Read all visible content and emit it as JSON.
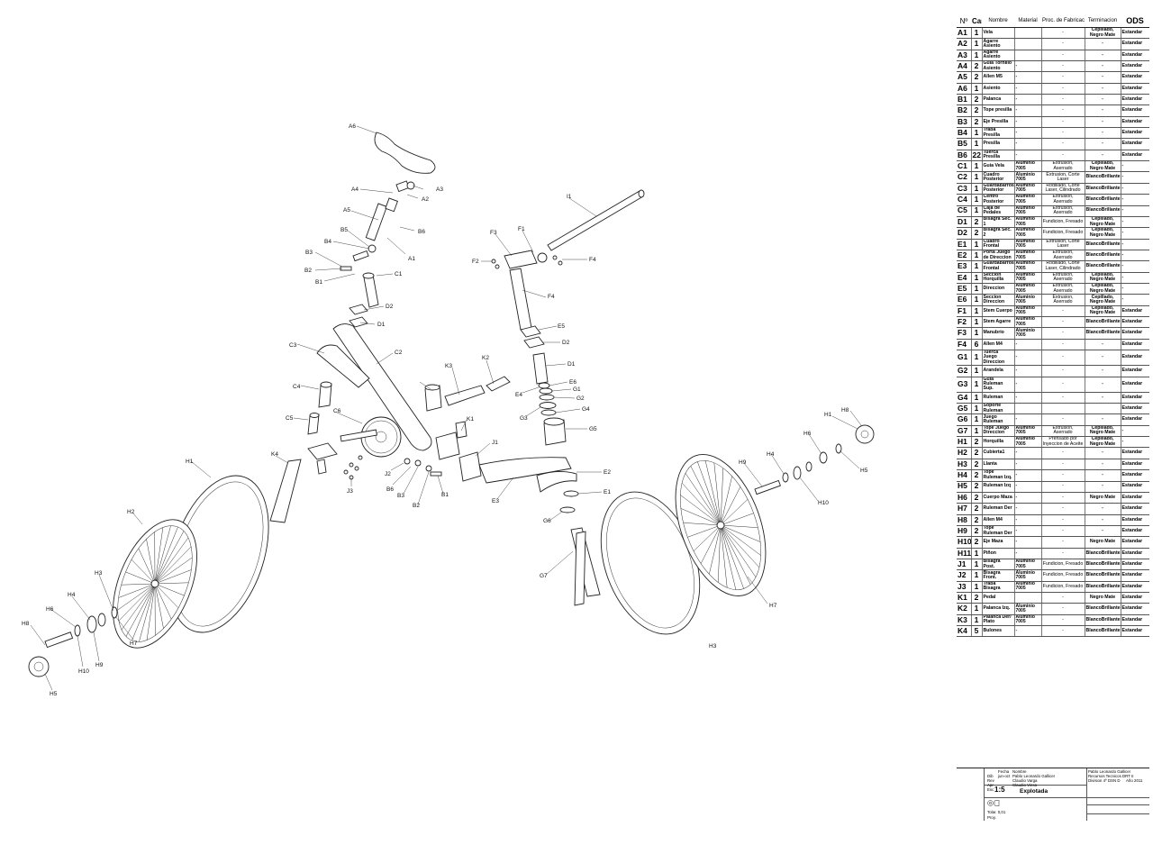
{
  "drawing": {
    "labels": [
      {
        "id": "lA6",
        "text": "A6"
      },
      {
        "id": "lA3",
        "text": "A3"
      },
      {
        "id": "lA4",
        "text": "A4"
      },
      {
        "id": "lA2",
        "text": "A2"
      },
      {
        "id": "lA5",
        "text": "A5"
      },
      {
        "id": "lB6",
        "text": "B6"
      },
      {
        "id": "lB5",
        "text": "B5"
      },
      {
        "id": "lA1",
        "text": "A1"
      },
      {
        "id": "lB4",
        "text": "B4"
      },
      {
        "id": "lB3",
        "text": "B3"
      },
      {
        "id": "lB2",
        "text": "B2"
      },
      {
        "id": "lB1",
        "text": "B1"
      },
      {
        "id": "lC1",
        "text": "C1"
      },
      {
        "id": "lD2a",
        "text": "D2"
      },
      {
        "id": "lD1a",
        "text": "D1"
      },
      {
        "id": "lC3",
        "text": "C3"
      },
      {
        "id": "lC2",
        "text": "C2"
      },
      {
        "id": "lC4",
        "text": "C4"
      },
      {
        "id": "lC5",
        "text": "C5"
      },
      {
        "id": "lC6",
        "text": "C6"
      },
      {
        "id": "lK3",
        "text": "K3"
      },
      {
        "id": "lK2",
        "text": "K2"
      },
      {
        "id": "lK1",
        "text": "K1"
      },
      {
        "id": "lJ1",
        "text": "J1"
      },
      {
        "id": "lJ2",
        "text": "J2"
      },
      {
        "id": "lB6b",
        "text": "B6"
      },
      {
        "id": "lB3b",
        "text": "B3"
      },
      {
        "id": "lB2b",
        "text": "B2"
      },
      {
        "id": "lB1b",
        "text": "B1"
      },
      {
        "id": "lJ3",
        "text": "J3"
      },
      {
        "id": "lK4",
        "text": "K4"
      },
      {
        "id": "lH1a",
        "text": "H1"
      },
      {
        "id": "lH2a",
        "text": "H2"
      },
      {
        "id": "lH3a",
        "text": "H3"
      },
      {
        "id": "lH4a",
        "text": "H4"
      },
      {
        "id": "lH6a",
        "text": "H6"
      },
      {
        "id": "lH8a",
        "text": "H8"
      },
      {
        "id": "lH10a",
        "text": "H10"
      },
      {
        "id": "lH9a",
        "text": "H9"
      },
      {
        "id": "lH7a",
        "text": "H7"
      },
      {
        "id": "lH5a",
        "text": "H5"
      },
      {
        "id": "lI1",
        "text": "I1"
      },
      {
        "id": "lF3",
        "text": "F3"
      },
      {
        "id": "lF1",
        "text": "F1"
      },
      {
        "id": "lF2",
        "text": "F2"
      },
      {
        "id": "lF4a",
        "text": "F4"
      },
      {
        "id": "lF4b",
        "text": "F4"
      },
      {
        "id": "lE5",
        "text": "E5"
      },
      {
        "id": "lD2b",
        "text": "D2"
      },
      {
        "id": "lD1b",
        "text": "D1"
      },
      {
        "id": "lE4",
        "text": "E4"
      },
      {
        "id": "lE6",
        "text": "E6"
      },
      {
        "id": "lG1",
        "text": "G1"
      },
      {
        "id": "lG2",
        "text": "G2"
      },
      {
        "id": "lG3",
        "text": "G3"
      },
      {
        "id": "lG4",
        "text": "G4"
      },
      {
        "id": "lG5",
        "text": "G5"
      },
      {
        "id": "lE2",
        "text": "E2"
      },
      {
        "id": "lE3",
        "text": "E3"
      },
      {
        "id": "lE1",
        "text": "E1"
      },
      {
        "id": "lG6",
        "text": "G6"
      },
      {
        "id": "lG7",
        "text": "G7"
      },
      {
        "id": "lH1b",
        "text": "H1"
      },
      {
        "id": "lH8b",
        "text": "H8"
      },
      {
        "id": "lH6b",
        "text": "H6"
      },
      {
        "id": "lH5b",
        "text": "H5"
      },
      {
        "id": "lH4b",
        "text": "H4"
      },
      {
        "id": "lH9b",
        "text": "H9"
      },
      {
        "id": "lH10b",
        "text": "H10"
      },
      {
        "id": "lH7b",
        "text": "H7"
      },
      {
        "id": "lH3b",
        "text": "H3"
      },
      {
        "id": "lH2b",
        "text": "H2"
      }
    ]
  },
  "bom": {
    "headers": {
      "n": "Nº",
      "cant": "Cant",
      "nombre": "Nombre",
      "material": "Material",
      "proc": "Proc. de Fabricacion",
      "term": "Terminacion",
      "ods": "ODS"
    },
    "rows": [
      {
        "n": "A1",
        "c": "1",
        "nombre": "Vela",
        "material": "",
        "proc": "-",
        "term": "Cepillado, Negro Mate",
        "ods": "Estandar"
      },
      {
        "n": "A2",
        "c": "1",
        "nombre": "Agarre Asiento",
        "material": "",
        "proc": "-",
        "term": "-",
        "ods": "Estandar"
      },
      {
        "n": "A3",
        "c": "1",
        "nombre": "Agarre Asiento",
        "material": "",
        "proc": "-",
        "term": "-",
        "ods": "Estandar"
      },
      {
        "n": "A4",
        "c": "2",
        "nombre": "Guia Tornillo Asiento",
        "material": "-",
        "proc": "-",
        "term": "-",
        "ods": "Estandar"
      },
      {
        "n": "A5",
        "c": "2",
        "nombre": "Allen M5",
        "material": "-",
        "proc": "-",
        "term": "-",
        "ods": "Estandar"
      },
      {
        "n": "A6",
        "c": "1",
        "nombre": "Asiento",
        "material": "-",
        "proc": "-",
        "term": "-",
        "ods": "Estandar"
      },
      {
        "n": "B1",
        "c": "2",
        "nombre": "Palanca",
        "material": "-",
        "proc": "-",
        "term": "-",
        "ods": "Estandar"
      },
      {
        "n": "B2",
        "c": "2",
        "nombre": "Tope presilla",
        "material": "-",
        "proc": "-",
        "term": "-",
        "ods": "Estandar"
      },
      {
        "n": "B3",
        "c": "2",
        "nombre": "Eje Presilla",
        "material": "-",
        "proc": "-",
        "term": "-",
        "ods": "Estandar"
      },
      {
        "n": "B4",
        "c": "1",
        "nombre": "Traba Presilla",
        "material": "-",
        "proc": "-",
        "term": "-",
        "ods": "Estandar"
      },
      {
        "n": "B5",
        "c": "1",
        "nombre": "Presilla",
        "material": "-",
        "proc": "-",
        "term": "-",
        "ods": "Estandar"
      },
      {
        "n": "B6",
        "c": "22",
        "nombre": "Tuerca Presilla",
        "material": "-",
        "proc": "-",
        "term": "-",
        "ods": "Estandar"
      },
      {
        "n": "C1",
        "c": "1",
        "nombre": "Guia Vela",
        "material": "Aluminio 7005",
        "proc": "Extrusion, Aserrado",
        "term": "Cepillado, Negro Mate",
        "ods": "-"
      },
      {
        "n": "C2",
        "c": "1",
        "nombre": "Cuadro Posterior",
        "material": "Aluminio 7005",
        "proc": "Extrusion, Corte Laser",
        "term": "BlancoBrillante",
        "ods": "-"
      },
      {
        "n": "C3",
        "c": "1",
        "nombre": "Guardabarros Posterior",
        "material": "Aluminio 7005",
        "proc": "Rodillado, Corte Laser, Cilindrado",
        "term": "BlancoBrillante",
        "ods": "-"
      },
      {
        "n": "C4",
        "c": "1",
        "nombre": "Centro Posterior",
        "material": "Aluminio 7005",
        "proc": "Extrusion, Aserrado",
        "term": "BlancoBrillante",
        "ods": "-"
      },
      {
        "n": "C5",
        "c": "1",
        "nombre": "Caja de Pedales",
        "material": "Aluminio 7005",
        "proc": "Extrusion, Aserrado",
        "term": "BlancoBrillante",
        "ods": "-"
      },
      {
        "n": "D1",
        "c": "2",
        "nombre": "Bisagra Sec. 1",
        "material": "Aluminio 7005",
        "proc": "Fundicion, Fresado",
        "term": "Cepillado, Negro Mate",
        "ods": "-"
      },
      {
        "n": "D2",
        "c": "2",
        "nombre": "Bisagra Sec. 2",
        "material": "Aluminio 7005",
        "proc": "Fundicion, Fresado",
        "term": "Cepillado, Negro Mate",
        "ods": "-"
      },
      {
        "n": "E1",
        "c": "1",
        "nombre": "Cuadro Frontal",
        "material": "Aluminio 7005",
        "proc": "Extrusion, Corte Laser",
        "term": "BlancoBrillante",
        "ods": "-"
      },
      {
        "n": "E2",
        "c": "1",
        "nombre": "Porta Juego de Direccion",
        "material": "Aluminio 7005",
        "proc": "Extrusion, Aserrado",
        "term": "BlancoBrillante",
        "ods": "-"
      },
      {
        "n": "E3",
        "c": "1",
        "nombre": "Guardabarros Frontal",
        "material": "Aluminio 7005",
        "proc": "Rodillado, Corte Laser, Cilindrado",
        "term": "BlancoBrillante",
        "ods": "-"
      },
      {
        "n": "E4",
        "c": "1",
        "nombre": "Seccion Horquilla",
        "material": "Aluminio 7005",
        "proc": "Extrusion, Aserrado",
        "term": "Cepillado, Negro Mate",
        "ods": "-"
      },
      {
        "n": "E5",
        "c": "1",
        "nombre": "Direccion",
        "material": "Aluminio 7005",
        "proc": "Extrusion, Aserrado",
        "term": "Cepillado, Negro Mate",
        "ods": "-"
      },
      {
        "n": "E6",
        "c": "1",
        "nombre": "Seccion Direccion",
        "material": "Aluminio 7005",
        "proc": "Extrusion, Aserrado",
        "term": "Cepillado, Negro Mate",
        "ods": "-"
      },
      {
        "n": "F1",
        "c": "1",
        "nombre": "Stem Cuerpo",
        "material": "Aluminio 7005",
        "proc": "-",
        "term": "Cepillado, Negro Mate",
        "ods": "Estandar"
      },
      {
        "n": "F2",
        "c": "1",
        "nombre": "Stem Agarre",
        "material": "Aluminio 7005",
        "proc": "-",
        "term": "BlancoBrillante",
        "ods": "Estandar"
      },
      {
        "n": "F3",
        "c": "1",
        "nombre": "Manubrio",
        "material": "Aluminio 7005",
        "proc": "-",
        "term": "BlancoBrillante",
        "ods": "Estandar"
      },
      {
        "n": "F4",
        "c": "6",
        "nombre": "Allen M4",
        "material": "-",
        "proc": "-",
        "term": "-",
        "ods": "Estandar"
      },
      {
        "n": "G1",
        "c": "1",
        "nombre": "Tuerca Juego Direccion",
        "material": "-",
        "proc": "-",
        "term": "-",
        "ods": "Estandar"
      },
      {
        "n": "G2",
        "c": "1",
        "nombre": "Arandela",
        "material": "-",
        "proc": "-",
        "term": "-",
        "ods": "Estandar"
      },
      {
        "n": "G3",
        "c": "1",
        "nombre": "Guia Ruleman Sup.",
        "material": "-",
        "proc": "-",
        "term": "-",
        "ods": "Estandar"
      },
      {
        "n": "G4",
        "c": "1",
        "nombre": "Ruleman",
        "material": "-",
        "proc": "-",
        "term": "-",
        "ods": "Estandar"
      },
      {
        "n": "G5",
        "c": "1",
        "nombre": "Soporte Ruleman",
        "material": "",
        "proc": "",
        "term": "",
        "ods": "Estandar"
      },
      {
        "n": "G6",
        "c": "1",
        "nombre": "Juego Ruleman",
        "material": "-",
        "proc": "-",
        "term": "-",
        "ods": "Estandar"
      },
      {
        "n": "G7",
        "c": "1",
        "nombre": "Tope Juego Direccion",
        "material": "Aluminio 7005",
        "proc": "Extrusion, Aserrado",
        "term": "Cepillado, Negro Mate",
        "ods": "-"
      },
      {
        "n": "H1",
        "c": "2",
        "nombre": "Horquilla",
        "material": "Aluminio 7005",
        "proc": "Prensado por Inyeccion de Aceite",
        "term": "Cepillado, Negro Mate",
        "ods": "-"
      },
      {
        "n": "H2",
        "c": "2",
        "nombre": "Cubierta1",
        "material": "-",
        "proc": "-",
        "term": "-",
        "ods": "Estandar"
      },
      {
        "n": "H3",
        "c": "2",
        "nombre": "Llanta",
        "material": "-",
        "proc": "-",
        "term": "-",
        "ods": "Estandar"
      },
      {
        "n": "H4",
        "c": "2",
        "nombre": "Tope Ruleman Izq.",
        "material": "-",
        "proc": "-",
        "term": "-",
        "ods": "Estandar"
      },
      {
        "n": "H5",
        "c": "2",
        "nombre": "Ruleman Izq",
        "material": "-",
        "proc": "-",
        "term": "-",
        "ods": "Estandar"
      },
      {
        "n": "H6",
        "c": "2",
        "nombre": "Cuerpo Maza",
        "material": "-",
        "proc": "-",
        "term": "Negro Mate",
        "ods": "Estandar"
      },
      {
        "n": "H7",
        "c": "2",
        "nombre": "Ruleman Der",
        "material": "-",
        "proc": "-",
        "term": "-",
        "ods": "Estandar"
      },
      {
        "n": "H8",
        "c": "2",
        "nombre": "Allen M4",
        "material": "-",
        "proc": "-",
        "term": "-",
        "ods": "Estandar"
      },
      {
        "n": "H9",
        "c": "2",
        "nombre": "Tope Ruleman Der",
        "material": "-",
        "proc": "-",
        "term": "-",
        "ods": "Estandar"
      },
      {
        "n": "H10",
        "c": "2",
        "nombre": "Eje Maza",
        "material": "-",
        "proc": "-",
        "term": "Negro Mate",
        "ods": "Estandar"
      },
      {
        "n": "H11",
        "c": "1",
        "nombre": "Piñon",
        "material": "-",
        "proc": "-",
        "term": "BlancoBrillante",
        "ods": "Estandar"
      },
      {
        "n": "J1",
        "c": "1",
        "nombre": "Bisagra Post.",
        "material": "Aluminio 7005",
        "proc": "Fundicion, Fresado",
        "term": "BlancoBrillante",
        "ods": "Estandar"
      },
      {
        "n": "J2",
        "c": "1",
        "nombre": "Bisagra Front.",
        "material": "Aluminio 7005",
        "proc": "Fundicion, Fresado",
        "term": "BlancoBrillante",
        "ods": "Estandar"
      },
      {
        "n": "J3",
        "c": "1",
        "nombre": "Traba Bisagra",
        "material": "Aluminio 7005",
        "proc": "Fundicion, Fresado",
        "term": "BlancoBrillante",
        "ods": "Estandar"
      },
      {
        "n": "K1",
        "c": "2",
        "nombre": "Pedal",
        "material": "",
        "proc": "-",
        "term": "Negro Mate",
        "ods": "Estandar"
      },
      {
        "n": "K2",
        "c": "1",
        "nombre": "Palanca Izq.",
        "material": "Aluminio 7005",
        "proc": "-",
        "term": "BlancoBrillante",
        "ods": "Estandar"
      },
      {
        "n": "K3",
        "c": "1",
        "nombre": "Palanca Der/ Plato",
        "material": "Aluminio 7005",
        "proc": "-",
        "term": "BlancoBrillante",
        "ods": "Estandar"
      },
      {
        "n": "K4",
        "c": "5",
        "nombre": "Bulones",
        "material": "-",
        "proc": "-",
        "term": "BlancoBrillante",
        "ods": "Estandar"
      }
    ]
  },
  "titleblock": {
    "fecha": "Fecha",
    "nombre": "Nombre",
    "dib": "Dib",
    "rev": "Rev",
    "apr": "Apr",
    "esc": "Esc",
    "dib_fecha": "jun-oct",
    "dib_nombre": "Pablo Leonardo Gallicer",
    "rev_nombre": "Claudio Varga",
    "apr_nombre": "Claudio Vinsa",
    "author": "Pablo Leonardo Gallicer",
    "subject": "Recursos Tecnicos DRT II",
    "division": "Division 4º DSN D",
    "year": "Año 2011",
    "scale": "1:5",
    "drawing_name": "Explotada",
    "sheet": "Tolar. 0,01",
    "proj": "Proy."
  }
}
